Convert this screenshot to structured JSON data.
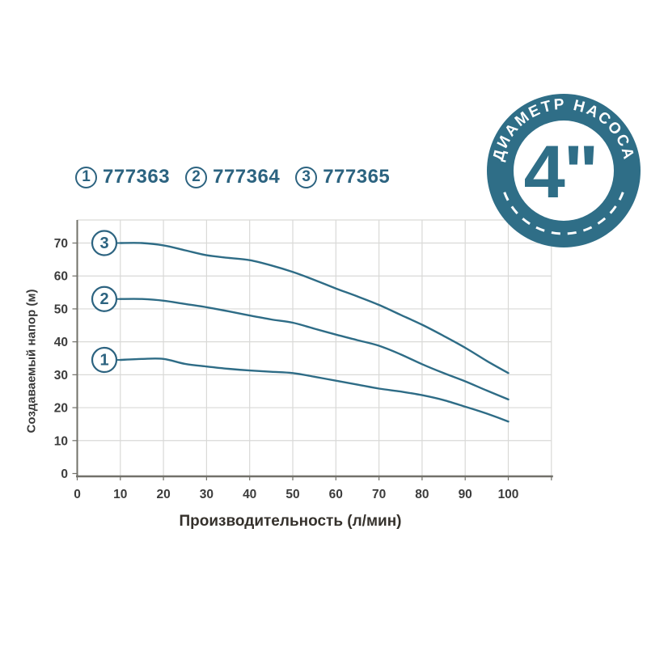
{
  "legend": {
    "items": [
      {
        "num": "1",
        "code": "777363"
      },
      {
        "num": "2",
        "code": "777364"
      },
      {
        "num": "3",
        "code": "777365"
      }
    ]
  },
  "badge": {
    "top_text": "ДИАМЕТР НАСОСА",
    "center_text": "4\""
  },
  "chart_data": {
    "type": "line",
    "title": "",
    "xlabel": "Производительность (л/мин)",
    "ylabel": "Создаваемый напор (м)",
    "xlim": [
      0,
      110
    ],
    "ylim": [
      0,
      77
    ],
    "grid": true,
    "legend_position": "top-left",
    "xticks": [
      0,
      10,
      20,
      30,
      40,
      50,
      60,
      70,
      80,
      90,
      100
    ],
    "yticks": [
      0,
      10,
      20,
      30,
      40,
      50,
      60,
      70
    ],
    "x": [
      10,
      15,
      20,
      25,
      30,
      35,
      40,
      45,
      50,
      55,
      60,
      65,
      70,
      75,
      80,
      85,
      90,
      95,
      100
    ],
    "series": [
      {
        "name": "777363",
        "label": "1",
        "values": [
          34.5,
          34.8,
          34.8,
          33.3,
          32.5,
          31.8,
          31.3,
          30.9,
          30.5,
          29.4,
          28.2,
          27.0,
          25.8,
          24.9,
          23.8,
          22.3,
          20.3,
          18.2,
          15.8
        ]
      },
      {
        "name": "777364",
        "label": "2",
        "values": [
          53,
          53,
          52.5,
          51.5,
          50.5,
          49.3,
          48,
          46.8,
          45.8,
          44,
          42.2,
          40.5,
          38.8,
          36.2,
          33.2,
          30.5,
          28,
          25.2,
          22.5
        ]
      },
      {
        "name": "777365",
        "label": "3",
        "values": [
          70,
          70,
          69.3,
          67.8,
          66.3,
          65.5,
          64.8,
          63.2,
          61.2,
          58.8,
          56.2,
          53.8,
          51.2,
          48.2,
          45.2,
          41.8,
          38.2,
          34.2,
          30.5
        ]
      }
    ]
  },
  "colors": {
    "accent": "#2c6380",
    "curve": "#2e6c86",
    "badge": "#2f6e87",
    "grid": "#d9d9d7",
    "axis": "#72716a",
    "tick_label": "#3c3c3c"
  }
}
